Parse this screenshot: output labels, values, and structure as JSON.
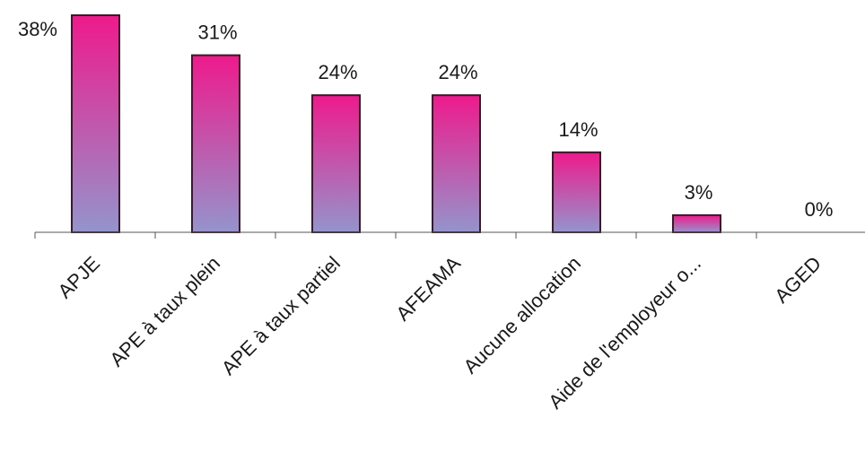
{
  "chart_data": {
    "type": "bar",
    "categories": [
      "APJE",
      "APE à taux plein",
      "APE à taux partiel",
      "AFEAMA",
      "Aucune allocation",
      "Aide de l'employeur o...",
      "AGED"
    ],
    "values": [
      38,
      31,
      24,
      24,
      14,
      3,
      0
    ],
    "value_labels": [
      "38%",
      "31%",
      "24%",
      "24%",
      "14%",
      "3%",
      "0%"
    ],
    "ylim": [
      0,
      38
    ],
    "grid": false,
    "legend": "none",
    "colors": {
      "bar_top": "#ee1a8c",
      "bar_bottom": "#9494cc",
      "bar_border": "#3a1a2a",
      "axis": "#555555",
      "text": "#1a1a1a"
    }
  }
}
